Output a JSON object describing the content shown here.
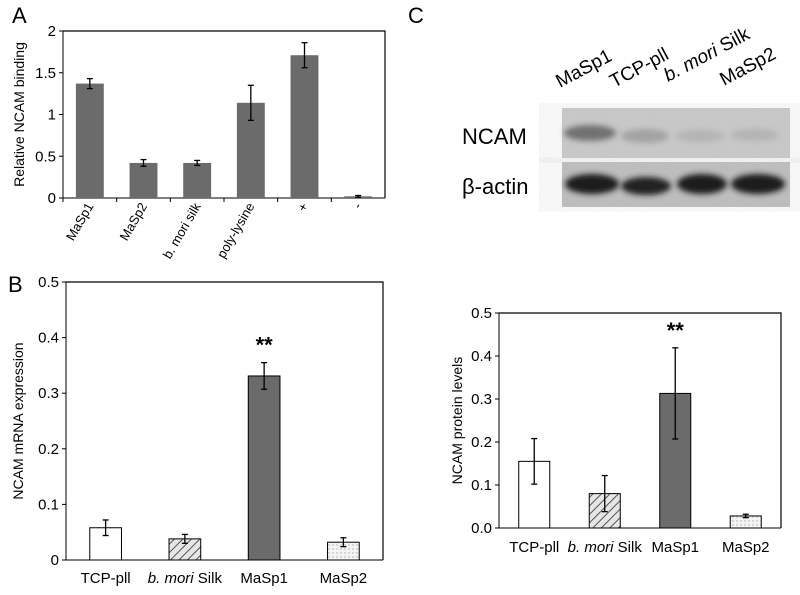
{
  "figure": {
    "panel_a": "A",
    "panel_b": "B",
    "panel_c": "C"
  },
  "chart_data": [
    {
      "id": "A",
      "type": "bar",
      "ylabel": "Relative NCAM binding",
      "ylim": [
        0,
        2
      ],
      "yticks": [
        "0",
        "0.5",
        "1",
        "1.5",
        "2"
      ],
      "categories": [
        "MaSp1",
        "MaSp2",
        "b. mori silk",
        "poly-lysine",
        "+",
        "-"
      ],
      "values": [
        1.37,
        0.42,
        0.42,
        1.14,
        1.71,
        0.02
      ],
      "errors": [
        0.06,
        0.04,
        0.03,
        0.21,
        0.15,
        0.01
      ],
      "color": "#6b6b6b"
    },
    {
      "id": "B",
      "type": "bar",
      "ylabel": "NCAM mRNA expression",
      "ylim": [
        0,
        0.5
      ],
      "yticks": [
        "0",
        "0.1",
        "0.2",
        "0.3",
        "0.4",
        "0.5"
      ],
      "categories": [
        {
          "text": "TCP-pll",
          "italic": ""
        },
        {
          "italic": "b. mori",
          "text": " Silk"
        },
        {
          "text": "MaSp1",
          "italic": ""
        },
        {
          "text": "MaSp2",
          "italic": ""
        }
      ],
      "values": [
        0.058,
        0.038,
        0.331,
        0.032
      ],
      "errors": [
        0.014,
        0.008,
        0.024,
        0.008
      ],
      "fills": [
        "white",
        "hatch",
        "#6b6b6b",
        "dots"
      ],
      "annotation": {
        "text": "**",
        "index": 2
      }
    },
    {
      "id": "C",
      "type": "bar",
      "ylabel": "NCAM protein levels",
      "ylim": [
        0,
        0.5
      ],
      "yticks": [
        "0.0",
        "0.1",
        "0.2",
        "0.3",
        "0.4",
        "0.5"
      ],
      "categories": [
        {
          "text": "TCP-pll",
          "italic": ""
        },
        {
          "italic": "b. mori",
          "text": " Silk"
        },
        {
          "text": "MaSp1",
          "italic": ""
        },
        {
          "text": "MaSp2",
          "italic": ""
        }
      ],
      "values": [
        0.155,
        0.08,
        0.313,
        0.028
      ],
      "errors": [
        0.053,
        0.042,
        0.106,
        0.004
      ],
      "fills": [
        "white",
        "hatch",
        "#6b6b6b",
        "dots"
      ],
      "annotation": {
        "text": "**",
        "index": 2
      }
    }
  ],
  "blot": {
    "rows": [
      "NCAM",
      "β-actin"
    ],
    "lanes": [
      {
        "text": "MaSp1",
        "italic": ""
      },
      {
        "text": "TCP-pll",
        "italic": ""
      },
      {
        "italic": "b. mori",
        "text": " Silk"
      },
      {
        "text": "MaSp2",
        "italic": ""
      }
    ]
  }
}
